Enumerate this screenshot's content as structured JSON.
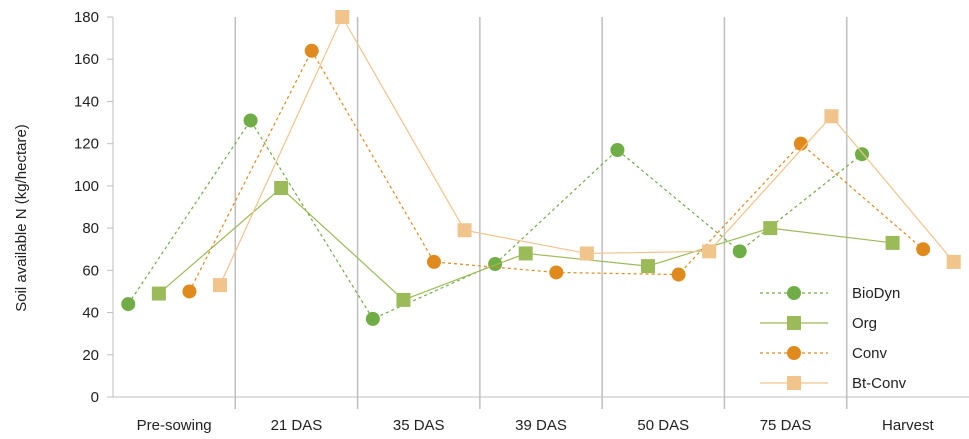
{
  "chart_data": {
    "type": "line",
    "ylabel": "Soil available N (kg/hectare)",
    "ylim": [
      0,
      180
    ],
    "yticks": [
      0,
      20,
      40,
      60,
      80,
      100,
      120,
      140,
      160,
      180
    ],
    "categories": [
      "Pre-sowing",
      "21 DAS",
      "35 DAS",
      "39 DAS",
      "50 DAS",
      "75 DAS",
      "Harvest"
    ],
    "grid": "vertical separators between categories",
    "legend_position": "bottom-right",
    "series": [
      {
        "name": "BioDyn",
        "marker": "circle",
        "line": "dashed",
        "color": "#70ad47",
        "values": [
          44,
          131,
          37,
          63,
          117,
          69,
          115
        ]
      },
      {
        "name": "Org",
        "marker": "square",
        "line": "solid",
        "color": "#9bbb59",
        "values": [
          49,
          99,
          46,
          68,
          62,
          80,
          73
        ]
      },
      {
        "name": "Conv",
        "marker": "circle",
        "line": "dashed",
        "color": "#e08a1e",
        "values": [
          50,
          164,
          64,
          59,
          58,
          120,
          70
        ]
      },
      {
        "name": "Bt-Conv",
        "marker": "square",
        "line": "solid",
        "color": "#f1c48c",
        "values": [
          53,
          180,
          79,
          68,
          69,
          133,
          64
        ]
      }
    ]
  }
}
